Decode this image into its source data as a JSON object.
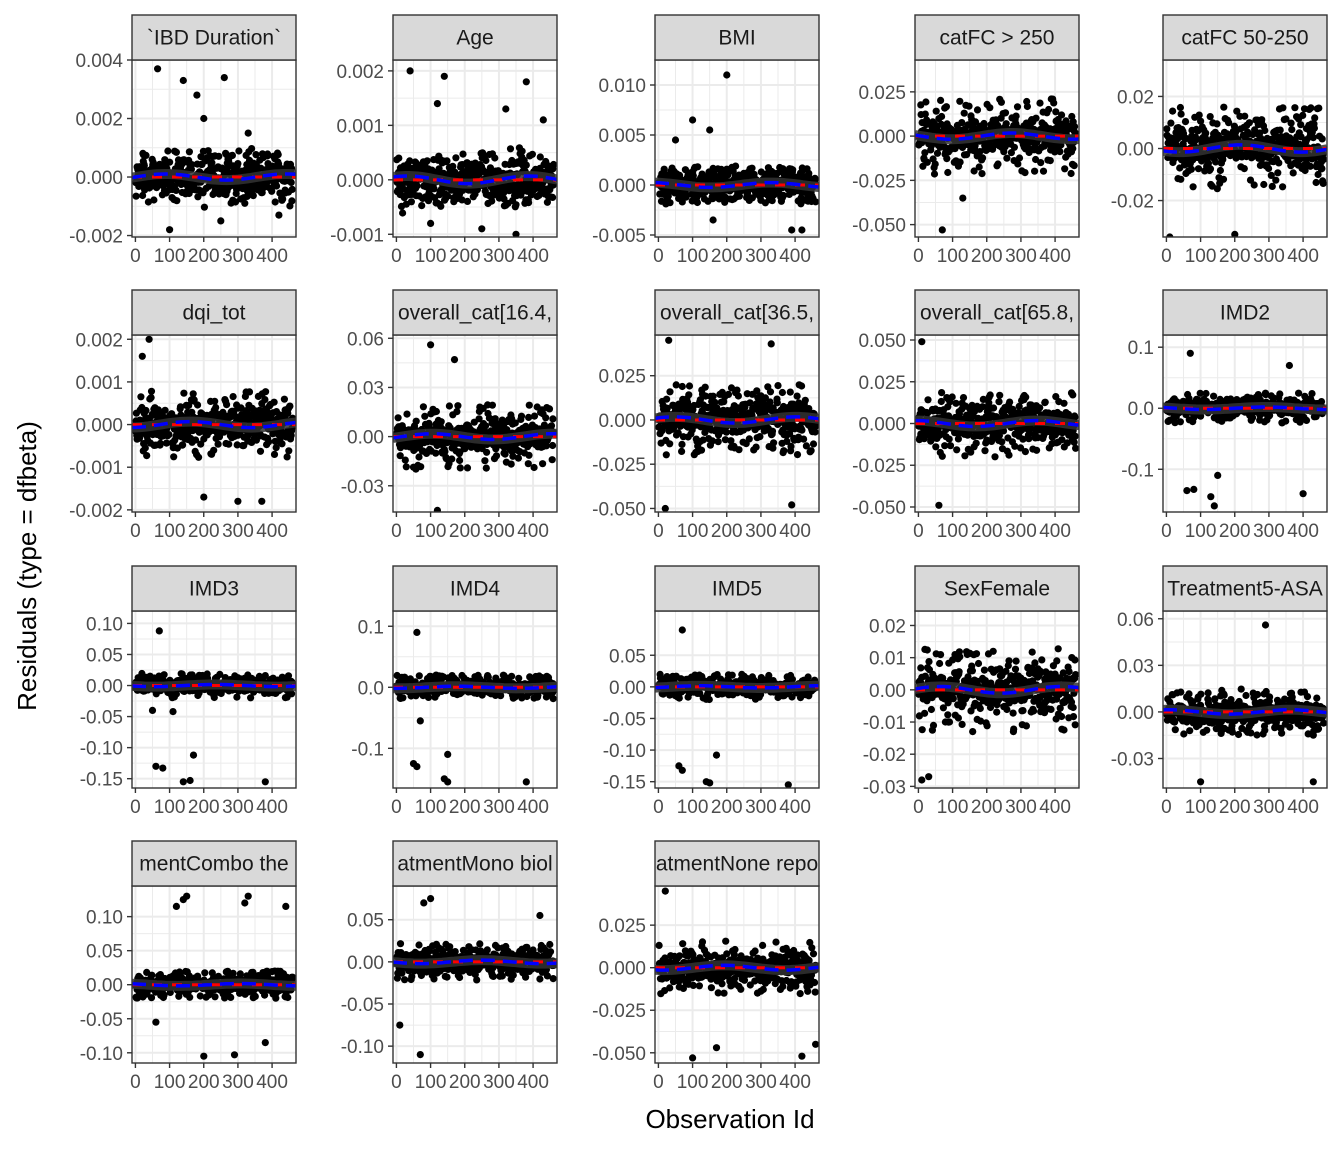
{
  "chart_data": {
    "type": "scatter",
    "facet": "wrap",
    "xlabel": "Observation Id",
    "ylabel": "Residuals (type = dfbeta)",
    "xlim": [
      -10,
      470
    ],
    "x_ticks": [
      0,
      100,
      200,
      300,
      400
    ],
    "x_tick_labels": [
      "0",
      "100",
      "200",
      "300",
      "400"
    ],
    "n_observations": 460,
    "grid": true,
    "colors": {
      "points": "#000000",
      "smooth": "#333333",
      "zero_line": "#ff0000",
      "mean_line": "#0000ff",
      "strip_fill": "#d9d9d9",
      "grid": "#ebebeb"
    },
    "panels": [
      {
        "label": "`IBD Duration`",
        "ylim": [
          -0.00205,
          0.004
        ],
        "y_ticks": [
          -0.002,
          0,
          0.002,
          0.004
        ],
        "y_tick_labels": [
          "-0.002",
          "0.000",
          "0.002",
          "0.004"
        ],
        "bulk": 0.0003,
        "tails": 0.0009,
        "outliers": [
          [
            65,
            0.0037
          ],
          [
            140,
            0.0033
          ],
          [
            180,
            0.0028
          ],
          [
            200,
            0.002
          ],
          [
            260,
            0.0034
          ],
          [
            330,
            0.0015
          ],
          [
            100,
            -0.0018
          ],
          [
            250,
            -0.0015
          ],
          [
            420,
            -0.0013
          ]
        ]
      },
      {
        "label": "Age",
        "ylim": [
          -0.00105,
          0.0022
        ],
        "y_ticks": [
          -0.001,
          0,
          0.001,
          0.002
        ],
        "y_tick_labels": [
          "-0.001",
          "0.000",
          "0.001",
          "0.002"
        ],
        "bulk": 0.0002,
        "tails": 0.0005,
        "outliers": [
          [
            40,
            0.002
          ],
          [
            120,
            0.0014
          ],
          [
            140,
            0.0019
          ],
          [
            320,
            0.0013
          ],
          [
            380,
            0.0018
          ],
          [
            430,
            0.0011
          ],
          [
            250,
            -0.0009
          ],
          [
            100,
            -0.0008
          ],
          [
            350,
            -0.001
          ]
        ]
      },
      {
        "label": "BMI",
        "ylim": [
          -0.0052,
          0.0125
        ],
        "y_ticks": [
          -0.005,
          0,
          0.005,
          0.01
        ],
        "y_tick_labels": [
          "-0.005",
          "0.000",
          "0.005",
          "0.010"
        ],
        "bulk": 0.0007,
        "tails": 0.0018,
        "outliers": [
          [
            200,
            0.011
          ],
          [
            100,
            0.0065
          ],
          [
            50,
            0.0045
          ],
          [
            150,
            0.0055
          ],
          [
            390,
            -0.0045
          ],
          [
            420,
            -0.0045
          ],
          [
            160,
            -0.0035
          ]
        ]
      },
      {
        "label": "catFC > 250",
        "ylim": [
          -0.057,
          0.043
        ],
        "y_ticks": [
          -0.05,
          -0.025,
          0,
          0.025
        ],
        "y_tick_labels": [
          "-0.050",
          "-0.025",
          "0.000",
          "0.025"
        ],
        "bulk": 0.005,
        "tails": 0.022,
        "outliers": [
          [
            70,
            -0.053
          ],
          [
            130,
            -0.035
          ]
        ]
      },
      {
        "label": "catFC 50-250",
        "ylim": [
          -0.034,
          0.034
        ],
        "y_ticks": [
          -0.02,
          0,
          0.02
        ],
        "y_tick_labels": [
          "-0.02",
          "0.00",
          "0.02"
        ],
        "bulk": 0.004,
        "tails": 0.016,
        "outliers": [
          [
            10,
            -0.034
          ],
          [
            200,
            -0.033
          ]
        ]
      },
      {
        "label": "dqi_tot",
        "ylim": [
          -0.00205,
          0.0021
        ],
        "y_ticks": [
          -0.002,
          -0.001,
          0,
          0.001,
          0.002
        ],
        "y_tick_labels": [
          "-0.002",
          "-0.001",
          "0.000",
          "0.001",
          "0.002"
        ],
        "bulk": 0.0002,
        "tails": 0.0008,
        "outliers": [
          [
            40,
            0.002
          ],
          [
            20,
            0.0016
          ],
          [
            300,
            -0.0018
          ],
          [
            370,
            -0.0018
          ],
          [
            200,
            -0.0017
          ]
        ]
      },
      {
        "label": "overall_cat[16.4,",
        "ylim": [
          -0.046,
          0.062
        ],
        "y_ticks": [
          -0.03,
          0,
          0.03,
          0.06
        ],
        "y_tick_labels": [
          "-0.03",
          "0.00",
          "0.03",
          "0.06"
        ],
        "bulk": 0.005,
        "tails": 0.02,
        "outliers": [
          [
            100,
            0.056
          ],
          [
            170,
            0.047
          ],
          [
            120,
            -0.045
          ]
        ]
      },
      {
        "label": "overall_cat[36.5,",
        "ylim": [
          -0.052,
          0.048
        ],
        "y_ticks": [
          -0.05,
          -0.025,
          0,
          0.025
        ],
        "y_tick_labels": [
          "-0.050",
          "-0.025",
          "0.000",
          "0.025"
        ],
        "bulk": 0.005,
        "tails": 0.02,
        "outliers": [
          [
            30,
            0.045
          ],
          [
            330,
            0.043
          ],
          [
            20,
            -0.05
          ],
          [
            390,
            -0.048
          ]
        ]
      },
      {
        "label": "overall_cat[65.8,",
        "ylim": [
          -0.053,
          0.053
        ],
        "y_ticks": [
          -0.05,
          -0.025,
          0,
          0.025,
          0.05
        ],
        "y_tick_labels": [
          "-0.050",
          "-0.025",
          "0.000",
          "0.025",
          "0.050"
        ],
        "bulk": 0.005,
        "tails": 0.02,
        "outliers": [
          [
            10,
            0.049
          ],
          [
            60,
            -0.049
          ]
        ]
      },
      {
        "label": "IMD2",
        "ylim": [
          -0.17,
          0.12
        ],
        "y_ticks": [
          -0.1,
          0,
          0.1
        ],
        "y_tick_labels": [
          "-0.1",
          "0.0",
          "0.1"
        ],
        "bulk": 0.006,
        "tails": 0.025,
        "outliers": [
          [
            70,
            0.09
          ],
          [
            60,
            -0.135
          ],
          [
            80,
            -0.133
          ],
          [
            140,
            -0.16
          ],
          [
            150,
            -0.11
          ],
          [
            130,
            -0.145
          ],
          [
            400,
            -0.14
          ],
          [
            360,
            0.07
          ]
        ]
      },
      {
        "label": "IMD3",
        "ylim": [
          -0.165,
          0.12
        ],
        "y_ticks": [
          -0.15,
          -0.1,
          -0.05,
          0,
          0.05,
          0.1
        ],
        "y_tick_labels": [
          "-0.15",
          "-0.10",
          "-0.05",
          "0.00",
          "0.05",
          "0.10"
        ],
        "bulk": 0.005,
        "tails": 0.02,
        "outliers": [
          [
            70,
            0.088
          ],
          [
            60,
            -0.13
          ],
          [
            80,
            -0.133
          ],
          [
            170,
            -0.112
          ],
          [
            140,
            -0.155
          ],
          [
            160,
            -0.153
          ],
          [
            380,
            -0.155
          ],
          [
            50,
            -0.04
          ],
          [
            110,
            -0.042
          ]
        ]
      },
      {
        "label": "IMD4",
        "ylim": [
          -0.165,
          0.125
        ],
        "y_ticks": [
          -0.1,
          0,
          0.1
        ],
        "y_tick_labels": [
          "-0.1",
          "0.0",
          "0.1"
        ],
        "bulk": 0.005,
        "tails": 0.02,
        "outliers": [
          [
            60,
            0.09
          ],
          [
            70,
            -0.055
          ],
          [
            50,
            -0.125
          ],
          [
            60,
            -0.13
          ],
          [
            150,
            -0.11
          ],
          [
            140,
            -0.15
          ],
          [
            150,
            -0.155
          ],
          [
            380,
            -0.155
          ]
        ]
      },
      {
        "label": "IMD5",
        "ylim": [
          -0.16,
          0.12
        ],
        "y_ticks": [
          -0.15,
          -0.1,
          -0.05,
          0,
          0.05
        ],
        "y_tick_labels": [
          "-0.15",
          "-0.10",
          "-0.05",
          "0.00",
          "0.05"
        ],
        "bulk": 0.005,
        "tails": 0.02,
        "outliers": [
          [
            70,
            0.09
          ],
          [
            60,
            -0.125
          ],
          [
            70,
            -0.132
          ],
          [
            170,
            -0.108
          ],
          [
            140,
            -0.15
          ],
          [
            150,
            -0.152
          ],
          [
            380,
            -0.155
          ]
        ]
      },
      {
        "label": "SexFemale",
        "ylim": [
          -0.0305,
          0.0245
        ],
        "y_ticks": [
          -0.03,
          -0.02,
          -0.01,
          0,
          0.01,
          0.02
        ],
        "y_tick_labels": [
          "-0.03",
          "-0.02",
          "-0.01",
          "0.00",
          "0.01",
          "0.02"
        ],
        "bulk": 0.003,
        "tails": 0.013,
        "outliers": [
          [
            10,
            -0.028
          ],
          [
            30,
            -0.027
          ]
        ]
      },
      {
        "label": "Treatment5-ASA",
        "ylim": [
          -0.049,
          0.065
        ],
        "y_ticks": [
          -0.03,
          0,
          0.03,
          0.06
        ],
        "y_tick_labels": [
          "-0.03",
          "0.00",
          "0.03",
          "0.06"
        ],
        "bulk": 0.004,
        "tails": 0.015,
        "outliers": [
          [
            290,
            0.056
          ],
          [
            100,
            -0.045
          ],
          [
            430,
            -0.045
          ]
        ]
      },
      {
        "label": "mentCombo the",
        "ylim": [
          -0.115,
          0.145
        ],
        "y_ticks": [
          -0.1,
          -0.05,
          0,
          0.05,
          0.1
        ],
        "y_tick_labels": [
          "-0.10",
          "-0.05",
          "0.00",
          "0.05",
          "0.10"
        ],
        "bulk": 0.005,
        "tails": 0.02,
        "outliers": [
          [
            120,
            0.115
          ],
          [
            140,
            0.125
          ],
          [
            150,
            0.13
          ],
          [
            320,
            0.12
          ],
          [
            330,
            0.13
          ],
          [
            440,
            0.115
          ],
          [
            200,
            -0.105
          ],
          [
            290,
            -0.103
          ],
          [
            380,
            -0.085
          ],
          [
            60,
            -0.055
          ]
        ]
      },
      {
        "label": "atmentMono biol",
        "ylim": [
          -0.12,
          0.09
        ],
        "y_ticks": [
          -0.1,
          -0.05,
          0,
          0.05
        ],
        "y_tick_labels": [
          "-0.10",
          "-0.05",
          "0.00",
          "0.05"
        ],
        "bulk": 0.006,
        "tails": 0.022,
        "outliers": [
          [
            10,
            -0.075
          ],
          [
            70,
            -0.11
          ],
          [
            100,
            0.075
          ],
          [
            80,
            0.07
          ],
          [
            420,
            0.055
          ]
        ]
      },
      {
        "label": "atmentNone repo",
        "ylim": [
          -0.056,
          0.048
        ],
        "y_ticks": [
          -0.05,
          -0.025,
          0,
          0.025
        ],
        "y_tick_labels": [
          "-0.050",
          "-0.025",
          "0.000",
          "0.025"
        ],
        "bulk": 0.004,
        "tails": 0.016,
        "outliers": [
          [
            100,
            -0.053
          ],
          [
            170,
            -0.047
          ],
          [
            420,
            -0.052
          ],
          [
            460,
            -0.045
          ],
          [
            20,
            0.045
          ]
        ]
      }
    ]
  }
}
